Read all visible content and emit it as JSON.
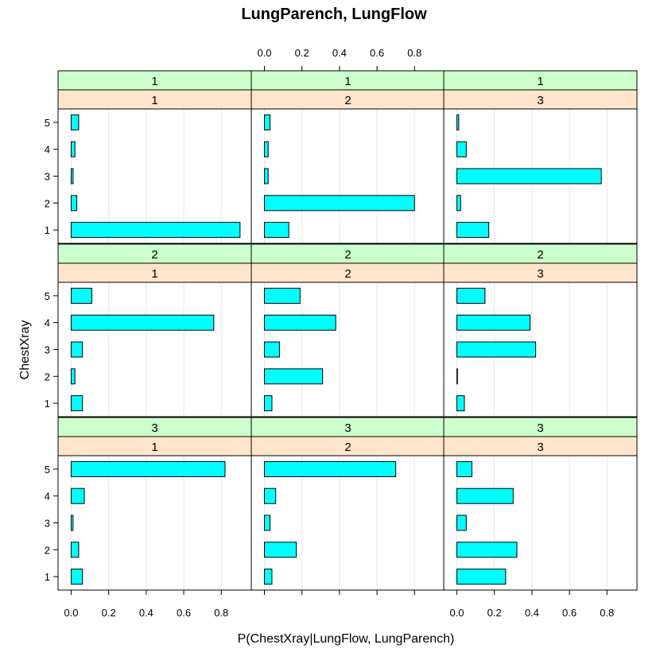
{
  "chart_data": {
    "type": "bar",
    "orientation": "horizontal",
    "title": "LungParench, LungFlow",
    "xlabel": "P(ChestXray|LungFlow, LungParench)",
    "ylabel": "ChestXray",
    "xlim": [
      -0.07,
      0.96
    ],
    "x_ticks": [
      "0.0",
      "0.2",
      "0.4",
      "0.6",
      "0.8"
    ],
    "x_tick_values": [
      0,
      0.2,
      0.4,
      0.6,
      0.8
    ],
    "categories": [
      "1",
      "2",
      "3",
      "4",
      "5"
    ],
    "colors": {
      "bar_fill": "#00FFFF",
      "bar_stroke": "#000000",
      "strip_outer": "#CCFFCC",
      "strip_inner": "#FFE5CC",
      "grid": "#E6E6E6",
      "frame": "#000000"
    },
    "panels": [
      {
        "lungflow": "1",
        "lungparench": "1",
        "values": [
          0.9,
          0.03,
          0.01,
          0.02,
          0.04
        ]
      },
      {
        "lungflow": "1",
        "lungparench": "2",
        "values": [
          0.13,
          0.8,
          0.02,
          0.02,
          0.03
        ]
      },
      {
        "lungflow": "1",
        "lungparench": "3",
        "values": [
          0.17,
          0.02,
          0.77,
          0.05,
          0.01
        ]
      },
      {
        "lungflow": "2",
        "lungparench": "1",
        "values": [
          0.06,
          0.02,
          0.06,
          0.76,
          0.11
        ]
      },
      {
        "lungflow": "2",
        "lungparench": "2",
        "values": [
          0.04,
          0.31,
          0.08,
          0.38,
          0.19
        ]
      },
      {
        "lungflow": "2",
        "lungparench": "3",
        "values": [
          0.04,
          0.003,
          0.42,
          0.39,
          0.15
        ]
      },
      {
        "lungflow": "3",
        "lungparench": "1",
        "values": [
          0.06,
          0.04,
          0.01,
          0.07,
          0.82
        ]
      },
      {
        "lungflow": "3",
        "lungparench": "2",
        "values": [
          0.04,
          0.17,
          0.03,
          0.06,
          0.7
        ]
      },
      {
        "lungflow": "3",
        "lungparench": "3",
        "values": [
          0.26,
          0.32,
          0.05,
          0.3,
          0.08
        ]
      }
    ]
  }
}
